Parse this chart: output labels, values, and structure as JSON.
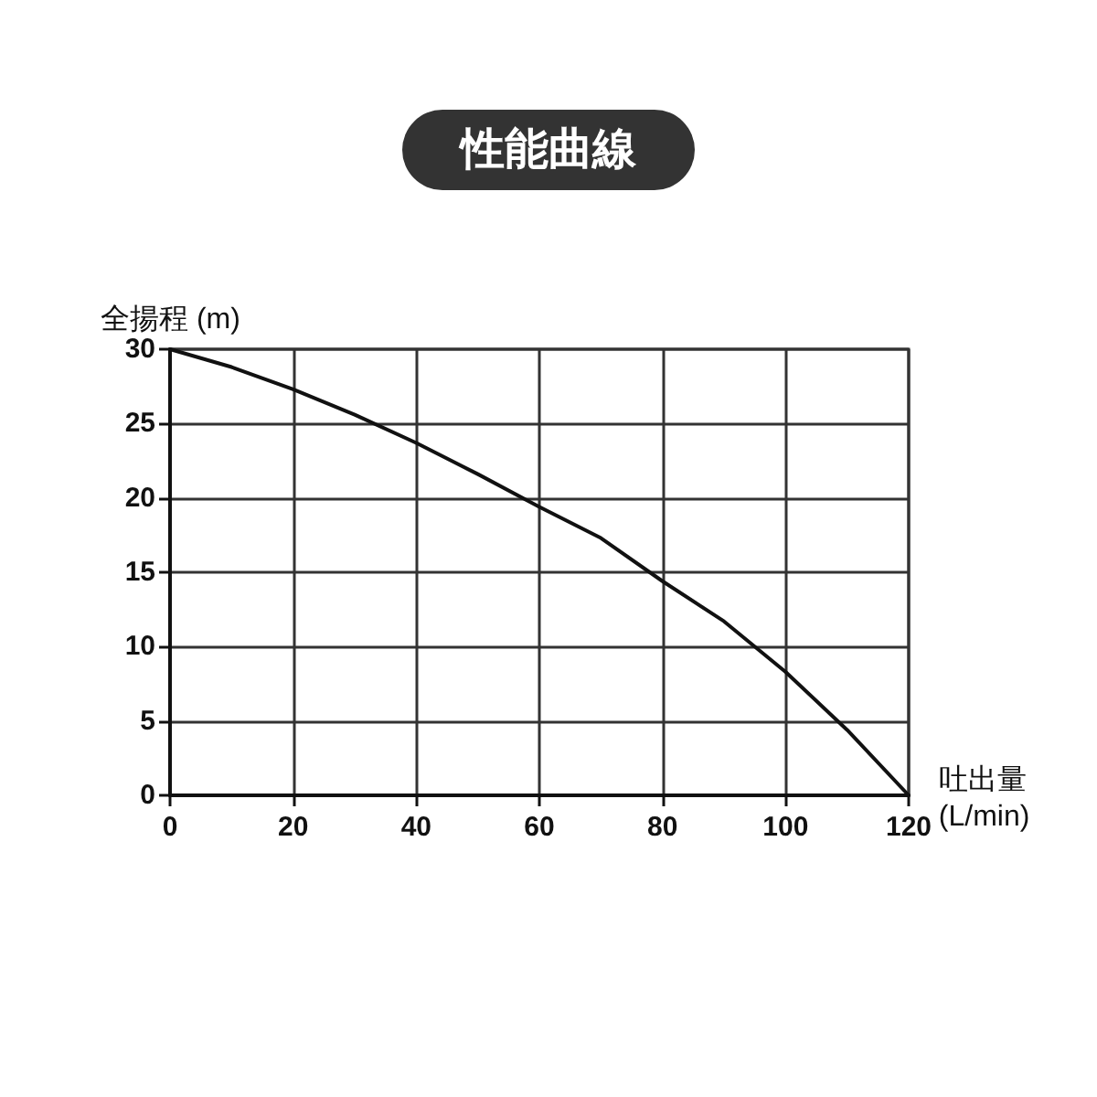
{
  "chart_data": {
    "type": "line",
    "title": "性能曲線",
    "xlabel": "吐出量\n(L/min)",
    "ylabel": "全揚程 (m)",
    "x": [
      0,
      10,
      20,
      30,
      40,
      50,
      60,
      70,
      80,
      90,
      100,
      110,
      120
    ],
    "series": [
      {
        "color": "#111111",
        "values": [
          30,
          28.8,
          27.3,
          25.6,
          23.7,
          21.6,
          19.4,
          17.3,
          14.4,
          11.7,
          8.3,
          4.4,
          0
        ]
      }
    ],
    "xlim": [
      0,
      120
    ],
    "xticks": [
      0,
      20,
      40,
      60,
      80,
      100,
      120
    ],
    "ylim": [
      0,
      30
    ],
    "yticks": [
      0,
      5,
      10,
      15,
      20,
      25,
      30
    ],
    "grid": true,
    "marker": "none",
    "line_style": "solid"
  }
}
